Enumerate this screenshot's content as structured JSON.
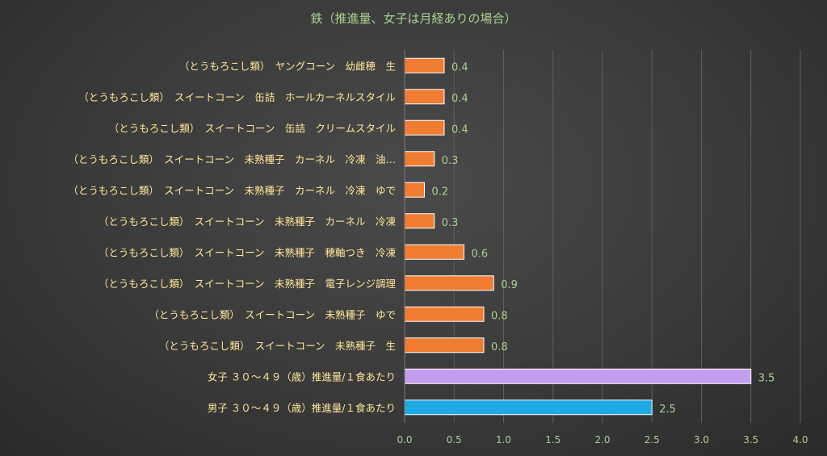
{
  "chart_data": {
    "type": "bar",
    "orientation": "horizontal",
    "title": "鉄（推進量、女子は月経ありの場合）",
    "categories": [
      "（とうもろこし類）　ヤングコーン　幼雌穂　生",
      "（とうもろこし類）　スイートコーン　缶詰　ホールカーネルスタイル",
      "（とうもろこし類）　スイートコーン　缶詰　クリームスタイル",
      "（とうもろこし類）　スイートコーン　未熟種子　カーネル　冷凍　油…",
      "（とうもろこし類）　スイートコーン　未熟種子　カーネル　冷凍　ゆで",
      "（とうもろこし類）　スイートコーン　未熟種子　カーネル　冷凍",
      "（とうもろこし類）　スイートコーン　未熟種子　穂軸つき　冷凍",
      "（とうもろこし類）　スイートコーン　未熟種子　電子レンジ調理",
      "（とうもろこし類）　スイートコーン　未熟種子　ゆで",
      "（とうもろこし類）　スイートコーン　未熟種子　生",
      "女子 ３０～４９（歳）推進量/１食あたり",
      "男子 ３０～４９（歳）推進量/１食あたり"
    ],
    "values": [
      0.4,
      0.4,
      0.4,
      0.3,
      0.2,
      0.3,
      0.6,
      0.9,
      0.8,
      0.8,
      3.5,
      2.5
    ],
    "value_labels": [
      "0.4",
      "0.4",
      "0.4",
      "0.3",
      "0.2",
      "0.3",
      "0.6",
      "0.9",
      "0.8",
      "0.8",
      "3.5",
      "2.5"
    ],
    "bar_colors": [
      "#f07c32",
      "#f07c32",
      "#f07c32",
      "#f07c32",
      "#f07c32",
      "#f07c32",
      "#f07c32",
      "#f07c32",
      "#f07c32",
      "#f07c32",
      "#c49cf2",
      "#1fa9e6"
    ],
    "xlim": [
      0,
      4
    ],
    "xticks": [
      "0.0",
      "0.5",
      "1.0",
      "1.5",
      "2.0",
      "2.5",
      "3.0",
      "3.5",
      "4.0"
    ],
    "grid": true,
    "legend": "none",
    "colors": {
      "title": "#a9d18e",
      "category_label": "#ffe699",
      "value_label": "#a9d18e",
      "tick_label": "#a9d18e",
      "gridline": "#5e5e5e"
    }
  }
}
